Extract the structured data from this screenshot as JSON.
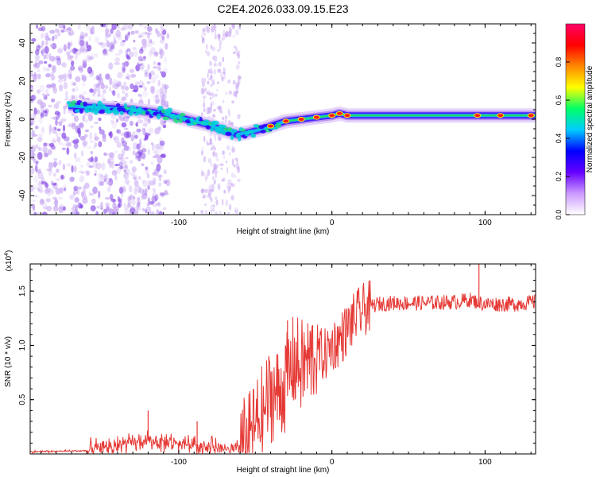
{
  "title": "C2E4.2026.033.09.15.E23",
  "chart_data": [
    {
      "type": "heatmap",
      "xlabel": "Height of straight line (km)",
      "ylabel": "Frequency (Hz)",
      "xlim": [
        -197,
        133
      ],
      "ylim": [
        -50,
        50
      ],
      "xticks": [
        -100,
        0,
        100
      ],
      "yticks": [
        -40,
        -20,
        0,
        20,
        40
      ],
      "colorbar": {
        "label": "Normalized spectral amplitude",
        "range": [
          0,
          1
        ],
        "ticks": [
          "0.0",
          "0.2",
          "0.4",
          "0.6",
          "0.8"
        ],
        "tick_values": [
          0.0,
          0.2,
          0.4,
          0.6,
          0.8
        ],
        "colors": [
          "#ffffff",
          "#cc99ff",
          "#6600ff",
          "#0000ff",
          "#00ccff",
          "#00ff66",
          "#ffff00",
          "#ff8800",
          "#ff0000",
          "#ff0066"
        ]
      },
      "ridge": {
        "x": [
          -172,
          -150,
          -130,
          -110,
          -95,
          -80,
          -70,
          -62,
          -55,
          -45,
          -38,
          -30,
          -20,
          -10,
          0,
          5,
          10,
          20,
          40,
          60,
          80,
          100,
          120,
          133
        ],
        "y": [
          7,
          6,
          5,
          3,
          0,
          -3,
          -6,
          -8,
          -7,
          -5,
          -3,
          -1,
          0,
          1,
          2,
          3,
          2,
          2,
          2,
          2,
          2,
          2,
          2,
          2
        ]
      },
      "peaks_x": [
        -40,
        -30,
        -20,
        -10,
        0,
        5,
        10,
        95,
        110,
        130
      ]
    },
    {
      "type": "line",
      "xlabel": "Height of straight line (km)",
      "ylabel": "SNR (10 * v/v)",
      "yunit_label": "(x10",
      "yunit_exp": "4",
      "xlim": [
        -197,
        133
      ],
      "ylim": [
        0,
        1.75
      ],
      "xticks": [
        -100,
        0,
        100
      ],
      "yticks": [
        "0.5",
        "1.0",
        "1.5"
      ],
      "ytick_values": [
        0.5,
        1.0,
        1.5
      ],
      "color": "#e53935",
      "series": [
        {
          "x": [
            -197,
            -160,
            -140,
            -120,
            -100,
            -80,
            -65,
            -55,
            -45,
            -40,
            -35,
            -30,
            -25,
            -20,
            -15,
            -10,
            -5,
            0,
            5,
            10,
            15,
            20,
            25,
            30,
            40,
            60,
            80,
            90,
            95,
            100,
            110,
            120,
            133
          ],
          "y": [
            0.02,
            0.03,
            0.08,
            0.12,
            0.1,
            0.07,
            0.03,
            0.1,
            0.4,
            0.55,
            0.55,
            0.65,
            0.85,
            0.8,
            0.85,
            0.95,
            0.9,
            1.0,
            1.05,
            1.15,
            1.25,
            1.32,
            1.36,
            1.38,
            1.39,
            1.39,
            1.4,
            1.42,
            1.4,
            1.38,
            1.38,
            1.38,
            1.4
          ]
        }
      ],
      "spikes": [
        {
          "x": -120,
          "y": 0.4
        },
        {
          "x": -88,
          "y": 0.3
        },
        {
          "x": -29,
          "y": 1.23
        },
        {
          "x": -13,
          "y": 1.18
        },
        {
          "x": 10,
          "y": 1.2
        },
        {
          "x": 96,
          "y": 1.75
        }
      ]
    }
  ]
}
